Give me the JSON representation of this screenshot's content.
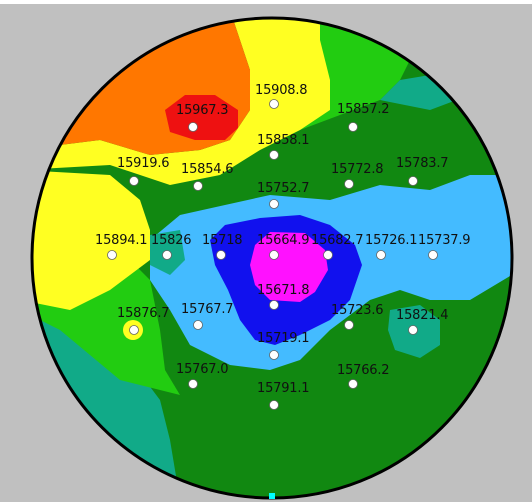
{
  "wafer_map": {
    "colors": {
      "background": "#c0c0c0",
      "wafer_edge": "#000000",
      "orange": "#ff7700",
      "red": "#ee1111",
      "yellow": "#ffff22",
      "light_green": "#22cc11",
      "dark_green": "#118811",
      "teal": "#11aa88",
      "light_blue": "#44bbff",
      "blue": "#1111ee",
      "magenta": "#ff11ff",
      "point_marker": "#ffffff",
      "notch": "#00ffff"
    },
    "points": [
      {
        "label": "15908.8"
      },
      {
        "label": "15967.3"
      },
      {
        "label": "15857.2"
      },
      {
        "label": "15858.1"
      },
      {
        "label": "15919.6"
      },
      {
        "label": "15854.6"
      },
      {
        "label": "15772.8"
      },
      {
        "label": "15783.7"
      },
      {
        "label": "15752.7"
      },
      {
        "label": "15894.1"
      },
      {
        "label": "15826"
      },
      {
        "label": "15718"
      },
      {
        "label": "15664.9"
      },
      {
        "label": "15682.7"
      },
      {
        "label": "15726.1"
      },
      {
        "label": "15737.9"
      },
      {
        "label": "15671.8"
      },
      {
        "label": "15876.7"
      },
      {
        "label": "15767.7"
      },
      {
        "label": "15723.6"
      },
      {
        "label": "15821.4"
      },
      {
        "label": "15719.1"
      },
      {
        "label": "15767.0"
      },
      {
        "label": "15766.2"
      },
      {
        "label": "15791.1"
      }
    ]
  }
}
